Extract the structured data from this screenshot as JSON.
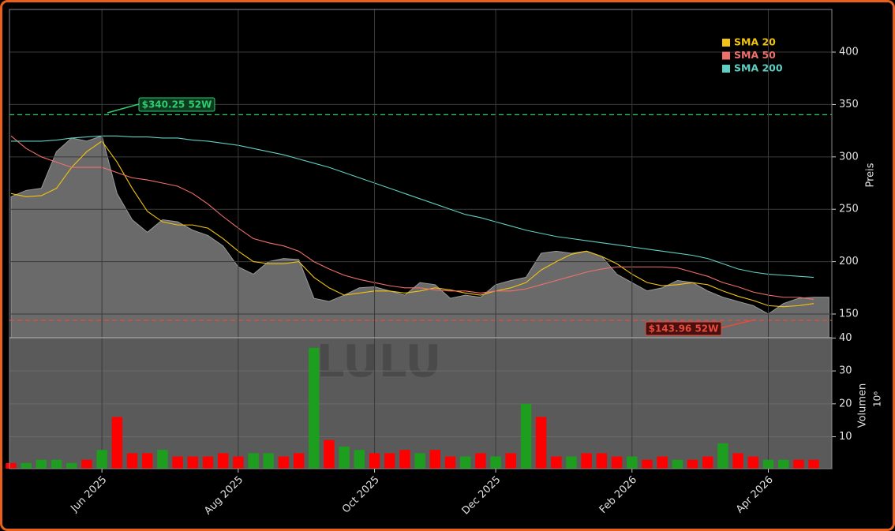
{
  "chart_data": [
    {
      "type": "stock-area",
      "watermark": "LULU",
      "y_label": "Preis",
      "ylim": [
        127.4,
        440.7
      ],
      "yticks": [
        150,
        200,
        250,
        300,
        350,
        400
      ],
      "grid": true,
      "color": "#6a6a6a",
      "values": [
        262,
        268,
        270,
        305,
        318,
        315,
        320,
        265,
        240,
        228,
        240,
        238,
        230,
        225,
        215,
        195,
        188,
        200,
        203,
        202,
        165,
        162,
        168,
        175,
        176,
        172,
        168,
        180,
        178,
        165,
        168,
        166,
        178,
        182,
        185,
        208,
        210,
        208,
        210,
        205,
        188,
        180,
        172,
        175,
        182,
        180,
        172,
        166,
        162,
        158,
        150,
        160,
        165,
        166
      ],
      "legend": "upper right",
      "series": [
        {
          "name": "SMA 20",
          "color": "#f1c40f",
          "values": [
            265,
            262,
            263,
            270,
            290,
            305,
            315,
            295,
            270,
            248,
            238,
            235,
            235,
            232,
            222,
            210,
            200,
            198,
            198,
            200,
            185,
            175,
            168,
            170,
            172,
            172,
            170,
            172,
            175,
            173,
            170,
            168,
            172,
            175,
            180,
            192,
            200,
            207,
            210,
            205,
            198,
            188,
            180,
            177,
            178,
            180,
            178,
            172,
            167,
            163,
            158,
            157,
            158,
            160
          ]
        },
        {
          "name": "SMA 50",
          "color": "#f0706a",
          "values": [
            320,
            308,
            300,
            295,
            290,
            290,
            290,
            285,
            280,
            278,
            275,
            272,
            265,
            255,
            243,
            232,
            222,
            218,
            215,
            210,
            200,
            193,
            187,
            183,
            180,
            177,
            175,
            175,
            173,
            172,
            172,
            170,
            172,
            172,
            174,
            178,
            182,
            186,
            190,
            193,
            195,
            195,
            195,
            195,
            194,
            190,
            186,
            180,
            176,
            171,
            168,
            166,
            166,
            164
          ]
        },
        {
          "name": "SMA 200",
          "color": "#5fcfc4",
          "values": [
            315,
            315,
            315,
            316,
            318,
            319,
            320,
            320,
            319,
            319,
            318,
            318,
            316,
            315,
            313,
            311,
            308,
            305,
            302,
            298,
            294,
            290,
            285,
            280,
            275,
            270,
            265,
            260,
            255,
            250,
            245,
            242,
            238,
            234,
            230,
            227,
            224,
            222,
            220,
            218,
            216,
            214,
            212,
            210,
            208,
            206,
            203,
            198,
            193,
            190,
            188,
            187,
            186,
            185
          ]
        }
      ],
      "annotations": [
        {
          "text": "$340.25 52W",
          "value": 340.25,
          "color": "#2ecc71"
        },
        {
          "text": "$143.96 52W",
          "value": 143.96,
          "color": "#e74c3c"
        }
      ]
    },
    {
      "type": "bar",
      "y_label": "Volumen",
      "y_label_exponent": "10⁶",
      "ylim": [
        0.3,
        40.1
      ],
      "yticks": [
        10,
        20,
        30,
        40
      ],
      "categories": [
        null,
        null,
        null,
        null,
        null,
        null,
        "Jun 2025",
        null,
        null,
        null,
        null,
        null,
        null,
        null,
        null,
        "Aug 2025",
        null,
        null,
        null,
        null,
        null,
        null,
        null,
        null,
        "Oct 2025",
        null,
        null,
        null,
        null,
        null,
        null,
        null,
        "Dec 2025",
        null,
        null,
        null,
        null,
        null,
        null,
        null,
        null,
        "Feb 2026",
        null,
        null,
        null,
        null,
        null,
        null,
        null,
        null,
        "Apr 2026",
        null,
        null,
        null
      ],
      "values": [
        2,
        2,
        3,
        3,
        2,
        3,
        6,
        16,
        5,
        5,
        6,
        4,
        4,
        4,
        5,
        4,
        5,
        5,
        4,
        5,
        37,
        9,
        7,
        6,
        5,
        5,
        6,
        5,
        6,
        4,
        4,
        5,
        4,
        5,
        20,
        16,
        4,
        4,
        5,
        5,
        4,
        4,
        3,
        4,
        3,
        3,
        4,
        8,
        5,
        4,
        3,
        3,
        3,
        3
      ],
      "colors": [
        "#ff0000",
        "#1e9e1e",
        "#1e9e1e",
        "#1e9e1e",
        "#1e9e1e",
        "#ff0000",
        "#1e9e1e",
        "#ff0000",
        "#ff0000",
        "#ff0000",
        "#1e9e1e",
        "#ff0000",
        "#ff0000",
        "#ff0000",
        "#ff0000",
        "#ff0000",
        "#1e9e1e",
        "#1e9e1e",
        "#ff0000",
        "#ff0000",
        "#1e9e1e",
        "#ff0000",
        "#1e9e1e",
        "#1e9e1e",
        "#ff0000",
        "#ff0000",
        "#ff0000",
        "#1e9e1e",
        "#ff0000",
        "#ff0000",
        "#1e9e1e",
        "#ff0000",
        "#1e9e1e",
        "#ff0000",
        "#1e9e1e",
        "#ff0000",
        "#ff0000",
        "#1e9e1e",
        "#ff0000",
        "#ff0000",
        "#ff0000",
        "#1e9e1e",
        "#ff0000",
        "#ff0000",
        "#1e9e1e",
        "#ff0000",
        "#ff0000",
        "#1e9e1e",
        "#ff0000",
        "#ff0000",
        "#1e9e1e",
        "#1e9e1e",
        "#ff0000",
        "#ff0000"
      ]
    }
  ]
}
